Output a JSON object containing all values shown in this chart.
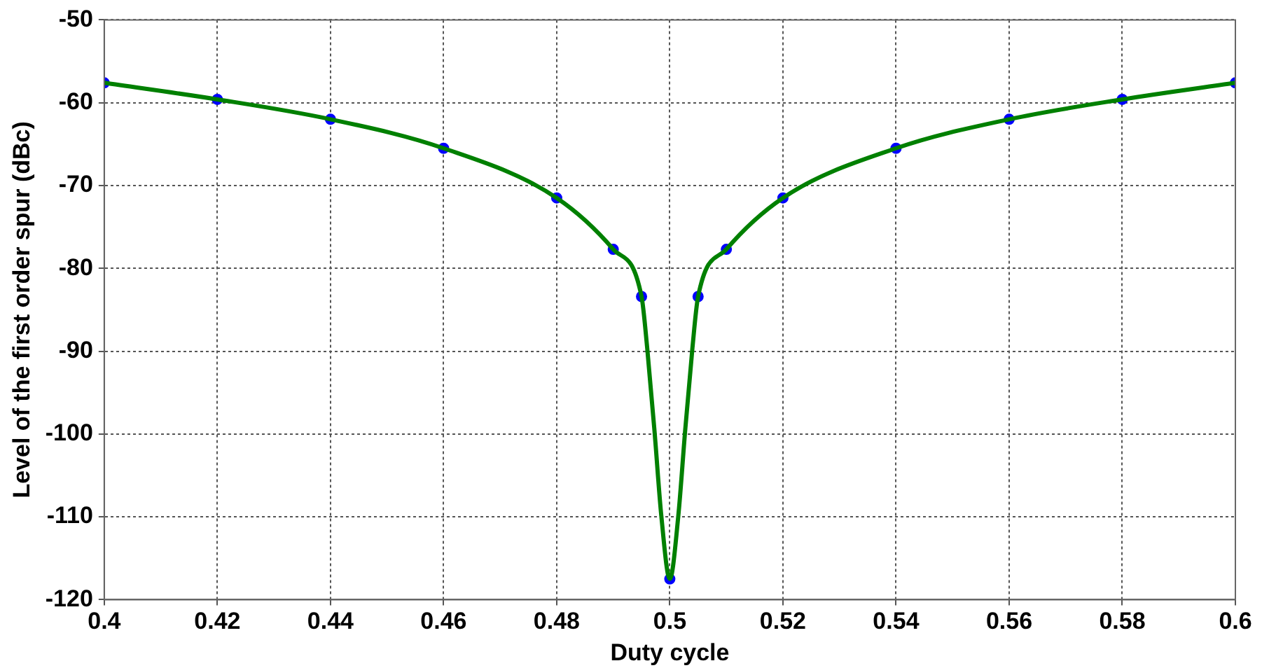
{
  "chart_data": {
    "type": "line",
    "xlabel": "Duty cycle",
    "ylabel": "Level of the first order spur (dBc)",
    "xlim": [
      0.4,
      0.6
    ],
    "xticks": [
      0.4,
      0.42,
      0.44,
      0.46,
      0.48,
      0.5,
      0.52,
      0.54,
      0.56,
      0.58,
      0.6
    ],
    "ylim": [
      -120,
      -50
    ],
    "yticks": [
      -120,
      -110,
      -100,
      -90,
      -80,
      -70,
      -60,
      -50
    ],
    "grid": true,
    "legend": false,
    "series": [
      {
        "color": "#008000",
        "marker": "none",
        "x": [
          0.4,
          0.42,
          0.44,
          0.46,
          0.48,
          0.49,
          0.495,
          0.496,
          0.4973,
          0.4985,
          0.5,
          0.5015,
          0.5027,
          0.504,
          0.505,
          0.51,
          0.52,
          0.54,
          0.56,
          0.58,
          0.6
        ],
        "values": [
          -57.6,
          -59.6,
          -62.0,
          -65.5,
          -71.5,
          -77.7,
          -83.4,
          -89.6,
          -99.7,
          -109.9,
          -117.5,
          -109.9,
          -99.7,
          -89.6,
          -83.4,
          -77.7,
          -71.5,
          -65.5,
          -62.0,
          -59.6,
          -57.6
        ]
      },
      {
        "type": "scatter",
        "color": "#0000ff",
        "marker": "circle",
        "x": [
          0.4,
          0.42,
          0.44,
          0.46,
          0.48,
          0.49,
          0.495,
          0.5,
          0.505,
          0.51,
          0.52,
          0.54,
          0.56,
          0.58,
          0.6
        ],
        "values": [
          -57.6,
          -59.6,
          -62.0,
          -65.5,
          -71.5,
          -77.7,
          -83.4,
          -117.5,
          -83.4,
          -77.7,
          -71.5,
          -65.5,
          -62.0,
          -59.6,
          -57.6
        ]
      }
    ]
  }
}
